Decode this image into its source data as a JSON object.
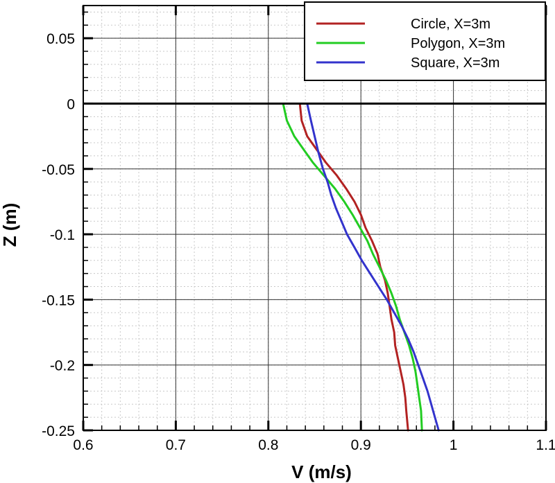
{
  "chart_data": {
    "type": "line",
    "xlabel": "V (m/s)",
    "ylabel": "Z (m)",
    "xlim": [
      0.6,
      1.1
    ],
    "ylim": [
      -0.25,
      0.075
    ],
    "x_ticks": [
      0.6,
      0.7,
      0.8,
      0.9,
      1.0,
      1.1
    ],
    "x_tick_labels": [
      "0.6",
      "0.7",
      "0.8",
      "0.9",
      "1",
      "1.1"
    ],
    "y_ticks": [
      0.05,
      0,
      -0.05,
      -0.1,
      -0.15,
      -0.2,
      -0.25
    ],
    "y_tick_labels": [
      "0.05",
      "0",
      "-0.05",
      "-0.1",
      "-0.15",
      "-0.2",
      "-0.25"
    ],
    "grid": true,
    "legend_position": "top-right",
    "series": [
      {
        "name": "Circle, X=3m",
        "color": "#b22222",
        "points": [
          [
            0.834,
            0
          ],
          [
            0.836,
            -0.013
          ],
          [
            0.842,
            -0.025
          ],
          [
            0.852,
            -0.035
          ],
          [
            0.862,
            -0.045
          ],
          [
            0.874,
            -0.055
          ],
          [
            0.884,
            -0.065
          ],
          [
            0.893,
            -0.075
          ],
          [
            0.9,
            -0.085
          ],
          [
            0.905,
            -0.095
          ],
          [
            0.912,
            -0.105
          ],
          [
            0.918,
            -0.115
          ],
          [
            0.921,
            -0.125
          ],
          [
            0.926,
            -0.135
          ],
          [
            0.929,
            -0.145
          ],
          [
            0.931,
            -0.155
          ],
          [
            0.933,
            -0.165
          ],
          [
            0.936,
            -0.175
          ],
          [
            0.937,
            -0.185
          ],
          [
            0.94,
            -0.195
          ],
          [
            0.943,
            -0.205
          ],
          [
            0.946,
            -0.215
          ],
          [
            0.948,
            -0.225
          ],
          [
            0.949,
            -0.235
          ],
          [
            0.951,
            -0.25
          ]
        ]
      },
      {
        "name": "Polygon, X=3m",
        "color": "#22cc22",
        "points": [
          [
            0.816,
            0
          ],
          [
            0.82,
            -0.013
          ],
          [
            0.828,
            -0.025
          ],
          [
            0.838,
            -0.035
          ],
          [
            0.848,
            -0.045
          ],
          [
            0.86,
            -0.055
          ],
          [
            0.872,
            -0.065
          ],
          [
            0.882,
            -0.075
          ],
          [
            0.891,
            -0.085
          ],
          [
            0.899,
            -0.095
          ],
          [
            0.907,
            -0.105
          ],
          [
            0.913,
            -0.115
          ],
          [
            0.92,
            -0.125
          ],
          [
            0.927,
            -0.135
          ],
          [
            0.933,
            -0.145
          ],
          [
            0.938,
            -0.155
          ],
          [
            0.942,
            -0.165
          ],
          [
            0.947,
            -0.175
          ],
          [
            0.952,
            -0.185
          ],
          [
            0.956,
            -0.195
          ],
          [
            0.959,
            -0.205
          ],
          [
            0.961,
            -0.215
          ],
          [
            0.963,
            -0.225
          ],
          [
            0.965,
            -0.235
          ],
          [
            0.966,
            -0.25
          ]
        ]
      },
      {
        "name": "Square, X=3m",
        "color": "#3333cc",
        "points": [
          [
            0.842,
            0
          ],
          [
            0.846,
            -0.013
          ],
          [
            0.85,
            -0.025
          ],
          [
            0.854,
            -0.037
          ],
          [
            0.859,
            -0.05
          ],
          [
            0.864,
            -0.06
          ],
          [
            0.868,
            -0.07
          ],
          [
            0.873,
            -0.08
          ],
          [
            0.879,
            -0.09
          ],
          [
            0.885,
            -0.1
          ],
          [
            0.893,
            -0.11
          ],
          [
            0.901,
            -0.12
          ],
          [
            0.91,
            -0.13
          ],
          [
            0.919,
            -0.14
          ],
          [
            0.928,
            -0.15
          ],
          [
            0.936,
            -0.16
          ],
          [
            0.944,
            -0.17
          ],
          [
            0.951,
            -0.18
          ],
          [
            0.957,
            -0.19
          ],
          [
            0.962,
            -0.2
          ],
          [
            0.967,
            -0.21
          ],
          [
            0.972,
            -0.22
          ],
          [
            0.976,
            -0.23
          ],
          [
            0.98,
            -0.24
          ],
          [
            0.984,
            -0.25
          ]
        ]
      }
    ]
  }
}
